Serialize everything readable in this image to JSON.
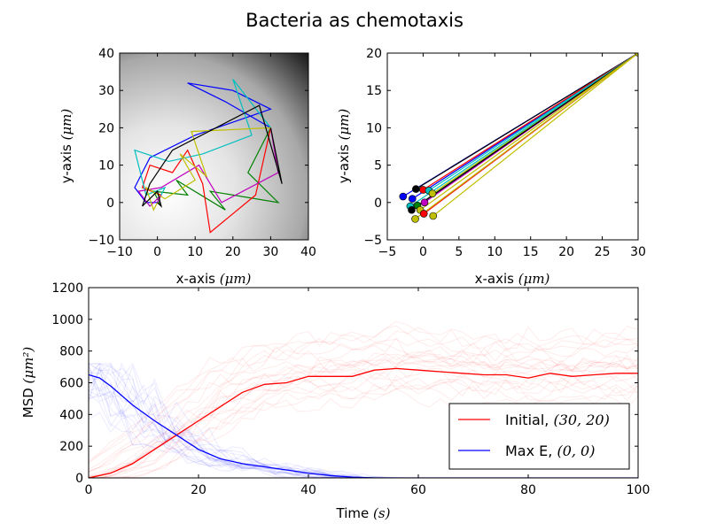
{
  "figure": {
    "title": "Bacteria as chemotaxis"
  },
  "colors": {
    "initial": "#ff0000",
    "max_e": "#0000ff",
    "trajectory_palette": [
      "#0000ff",
      "#008000",
      "#ff0000",
      "#00bfbf",
      "#bf00bf",
      "#bfbf00",
      "#000000"
    ]
  },
  "chart_data": [
    {
      "type": "line",
      "panel": "trajectories",
      "title": "",
      "xlabel": "x-axis",
      "xlabel_unit": "(μm)",
      "ylabel": "y-axis",
      "ylabel_unit": "(μm)",
      "xlim": [
        -10,
        40
      ],
      "ylim": [
        -10,
        40
      ],
      "xticks": [
        -10,
        0,
        10,
        20,
        30,
        40
      ],
      "yticks": [
        -10,
        0,
        10,
        20,
        30,
        40
      ],
      "background": "grayscale field, white near (0,0), dark toward top-right",
      "grid": false,
      "series": [
        {
          "color": "#0000ff",
          "x": [
            30,
            18,
            8,
            20,
            30,
            10,
            -2,
            -6,
            -3,
            0
          ],
          "y": [
            20,
            27,
            32,
            30,
            25,
            18,
            12,
            4,
            0,
            0
          ]
        },
        {
          "color": "#008000",
          "x": [
            30,
            24,
            32,
            14,
            18,
            5,
            8,
            -1,
            1,
            0
          ],
          "y": [
            20,
            8,
            0,
            3,
            -2,
            6,
            2,
            3,
            -1,
            0
          ]
        },
        {
          "color": "#ff0000",
          "x": [
            30,
            26,
            14,
            12,
            8,
            4,
            -2,
            -4,
            1,
            0
          ],
          "y": [
            20,
            2,
            -8,
            5,
            14,
            8,
            10,
            4,
            2,
            0
          ]
        },
        {
          "color": "#00bfbf",
          "x": [
            30,
            20,
            25,
            12,
            3,
            -6,
            -3,
            2,
            0
          ],
          "y": [
            20,
            33,
            18,
            13,
            11,
            14,
            2,
            4,
            0
          ]
        },
        {
          "color": "#bf00bf",
          "x": [
            30,
            32,
            17,
            11,
            1,
            -5,
            -2,
            1,
            0
          ],
          "y": [
            20,
            8,
            0,
            10,
            4,
            3,
            -1,
            2,
            0
          ]
        },
        {
          "color": "#bfbf00",
          "x": [
            30,
            9,
            13,
            6,
            10,
            2,
            -3,
            -1,
            0
          ],
          "y": [
            20,
            19,
            7,
            13,
            6,
            1,
            4,
            -2,
            0
          ]
        },
        {
          "color": "#000000",
          "x": [
            30,
            33,
            27,
            4,
            -2,
            -4,
            0,
            1,
            0
          ],
          "y": [
            20,
            5,
            26,
            14,
            5,
            -1,
            3,
            -1,
            0
          ]
        }
      ]
    },
    {
      "type": "line",
      "panel": "displacement",
      "title": "",
      "xlabel": "x-axis",
      "xlabel_unit": "(μm)",
      "ylabel": "y-axis",
      "ylabel_unit": "(μm)",
      "xlim": [
        -5,
        30
      ],
      "ylim": [
        -5,
        20
      ],
      "xticks": [
        -5,
        0,
        5,
        10,
        15,
        20,
        25,
        30
      ],
      "yticks": [
        -5,
        0,
        5,
        10,
        15,
        20
      ],
      "grid": false,
      "start": [
        30,
        20
      ],
      "end_points": [
        {
          "color": "#0000ff",
          "x": -2.8,
          "y": 0.8
        },
        {
          "color": "#000000",
          "x": -1.0,
          "y": 1.8
        },
        {
          "color": "#0000ff",
          "x": -1.5,
          "y": 0.5
        },
        {
          "color": "#ff0000",
          "x": 0.0,
          "y": 1.7
        },
        {
          "color": "#00bfbf",
          "x": 0.8,
          "y": 1.6
        },
        {
          "color": "#bfbf00",
          "x": 1.3,
          "y": 1.2
        },
        {
          "color": "#bf00bf",
          "x": 0.2,
          "y": 0.0
        },
        {
          "color": "#008000",
          "x": -0.8,
          "y": -0.4
        },
        {
          "color": "#00bfbf",
          "x": -1.8,
          "y": -0.5
        },
        {
          "color": "#000000",
          "x": -1.6,
          "y": -1.0
        },
        {
          "color": "#bfbf00",
          "x": -0.4,
          "y": -1.0
        },
        {
          "color": "#ff0000",
          "x": 0.1,
          "y": -1.5
        },
        {
          "color": "#bfbf00",
          "x": -1.1,
          "y": -2.2
        },
        {
          "color": "#bfbf00",
          "x": 1.4,
          "y": -1.8
        }
      ]
    },
    {
      "type": "line",
      "panel": "msd",
      "title": "",
      "xlabel": "Time",
      "xlabel_unit": "(s)",
      "ylabel": "MSD",
      "ylabel_unit": "(μm²)",
      "xlim": [
        0,
        100
      ],
      "ylim": [
        0,
        1200
      ],
      "xticks": [
        0,
        20,
        40,
        60,
        80,
        100
      ],
      "yticks": [
        0,
        200,
        400,
        600,
        800,
        1000,
        1200
      ],
      "grid": false,
      "legend_position": "lower-right",
      "series": [
        {
          "name": "Initial,",
          "name_math": "(30, 20)",
          "color": "#ff0000",
          "x": [
            0,
            4,
            8,
            12,
            16,
            20,
            24,
            28,
            32,
            36,
            40,
            44,
            48,
            52,
            56,
            60,
            64,
            68,
            72,
            76,
            80,
            84,
            88,
            92,
            96,
            100
          ],
          "y": [
            0,
            30,
            90,
            180,
            270,
            360,
            450,
            540,
            590,
            600,
            640,
            640,
            640,
            680,
            690,
            680,
            670,
            660,
            650,
            650,
            630,
            660,
            640,
            650,
            660,
            660
          ]
        },
        {
          "name": "Max E,",
          "name_math": "(0, 0)",
          "color": "#0000ff",
          "x": [
            0,
            2,
            4,
            8,
            12,
            16,
            20,
            24,
            28,
            32,
            36,
            40,
            44,
            48,
            52,
            60,
            70,
            80,
            90,
            100
          ],
          "y": [
            650,
            630,
            580,
            460,
            360,
            270,
            180,
            120,
            90,
            70,
            50,
            30,
            15,
            5,
            0,
            0,
            0,
            0,
            0,
            0
          ]
        }
      ],
      "faint_traces": "many individual translucent red and blue trajectories behind the means"
    }
  ]
}
